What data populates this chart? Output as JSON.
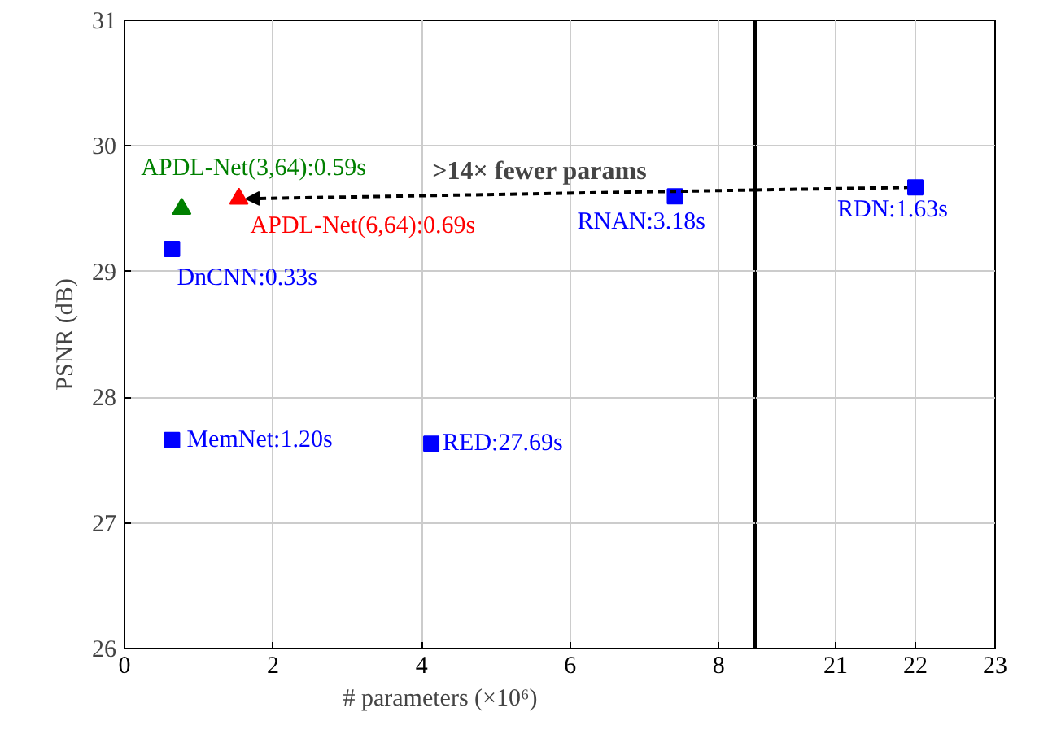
{
  "chart_data": [
    {
      "type": "scatter",
      "xlabel": "# parameters (×10⁶)",
      "ylabel": "PSNR (dB)",
      "xlim": [
        0,
        8.5
      ],
      "xticks": [
        0,
        2,
        4,
        6,
        8
      ],
      "ylim": [
        26,
        31
      ],
      "yticks": [
        26,
        27,
        28,
        29,
        30,
        31
      ],
      "grid": true,
      "annotations": [
        ">14× fewer params"
      ],
      "series": [
        {
          "name": "DnCNN:0.33s",
          "color": "#0000ff",
          "marker": "square",
          "x": [
            0.64
          ],
          "values": [
            29.18
          ]
        },
        {
          "name": "MemNet:1.20s",
          "color": "#0000ff",
          "marker": "square",
          "x": [
            0.64
          ],
          "values": [
            27.66
          ]
        },
        {
          "name": "RED:27.69s",
          "color": "#0000ff",
          "marker": "square",
          "x": [
            4.13
          ],
          "values": [
            27.63
          ]
        },
        {
          "name": "RNAN:3.18s",
          "color": "#0000ff",
          "marker": "square",
          "x": [
            7.41
          ],
          "values": [
            29.6
          ]
        },
        {
          "name": "APDL-Net(3,64):0.59s",
          "color": "#008000",
          "marker": "triangle",
          "x": [
            0.77
          ],
          "values": [
            29.5
          ]
        },
        {
          "name": "APDL-Net(6,64):0.69s",
          "color": "#ff0000",
          "marker": "triangle",
          "x": [
            1.54
          ],
          "values": [
            29.58
          ]
        }
      ]
    },
    {
      "type": "scatter",
      "xlim": [
        20,
        23
      ],
      "xticks": [
        21,
        22,
        23
      ],
      "ylim": [
        26,
        31
      ],
      "yticks": [
        26,
        27,
        28,
        29,
        30,
        31
      ],
      "grid": true,
      "tick_labels": "x",
      "series": [
        {
          "name": "RDN:1.63s",
          "color": "#0000ff",
          "marker": "square",
          "x": [
            22.0
          ],
          "values": [
            29.67
          ]
        }
      ]
    }
  ]
}
